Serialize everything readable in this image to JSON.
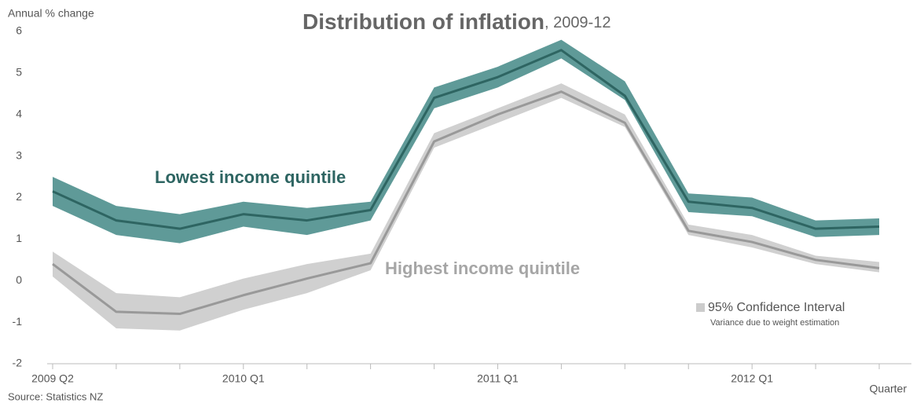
{
  "chart_data": {
    "type": "line",
    "title": "Distribution of inflation",
    "subtitle": ", 2009-12",
    "y_label": "Annual % change",
    "x_label": "Quarter",
    "source": "Source: Statistics NZ",
    "legend": {
      "label": "95% Confidence Interval",
      "note": "Variance due to weight estimation",
      "color": "#cccccc"
    },
    "categories": [
      "2009 Q2",
      null,
      null,
      "2010 Q1",
      null,
      null,
      null,
      "2011 Q1",
      null,
      null,
      null,
      "2012 Q1",
      null,
      null
    ],
    "series": [
      {
        "name": "Lowest income quintile",
        "color": "#2e6562",
        "band_color": "#5f9a98",
        "values": [
          2.15,
          1.45,
          1.25,
          1.6,
          1.45,
          1.7,
          4.4,
          4.9,
          5.55,
          4.45,
          1.9,
          1.75,
          1.25,
          1.3
        ],
        "upper": [
          2.5,
          1.8,
          1.6,
          1.9,
          1.75,
          1.9,
          4.65,
          5.15,
          5.8,
          4.8,
          2.1,
          2.0,
          1.45,
          1.5
        ],
        "lower": [
          1.8,
          1.1,
          0.9,
          1.3,
          1.1,
          1.45,
          4.15,
          4.65,
          5.35,
          4.35,
          1.65,
          1.55,
          1.05,
          1.1
        ]
      },
      {
        "name": "Highest income quintile",
        "color": "#999999",
        "band_color": "#d0d0d0",
        "values": [
          0.4,
          -0.75,
          -0.8,
          -0.35,
          0.05,
          0.42,
          3.35,
          4.0,
          4.55,
          3.8,
          1.2,
          0.93,
          0.5,
          0.3
        ],
        "upper": [
          0.7,
          -0.3,
          -0.4,
          0.05,
          0.4,
          0.65,
          3.55,
          4.15,
          4.75,
          4.0,
          1.35,
          1.1,
          0.6,
          0.45
        ],
        "lower": [
          0.1,
          -1.15,
          -1.2,
          -0.7,
          -0.3,
          0.25,
          3.2,
          3.8,
          4.4,
          3.7,
          1.1,
          0.8,
          0.4,
          0.2
        ]
      }
    ],
    "ylim": [
      -2,
      6
    ],
    "yticks": [
      -2,
      -1,
      0,
      1,
      2,
      3,
      4,
      5,
      6
    ],
    "grid": false
  }
}
